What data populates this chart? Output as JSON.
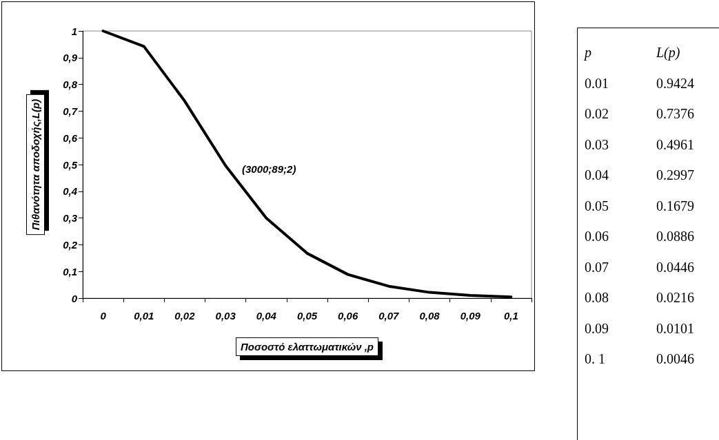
{
  "chart_data": {
    "type": "line",
    "xlabel": "Ποσοστό ελαττωματικών ,p",
    "ylabel": "Πιθανότητα αποδοχής,L(p)",
    "categories": [
      "0",
      "0,01",
      "0,02",
      "0,03",
      "0,04",
      "0,05",
      "0,06",
      "0,07",
      "0,08",
      "0,09",
      "0,1"
    ],
    "series": [
      {
        "color": "#000000",
        "values": [
          1,
          0.9424,
          0.7376,
          0.4961,
          0.2997,
          0.1679,
          0.0886,
          0.0446,
          0.0216,
          0.0101,
          0.0046
        ]
      }
    ],
    "ylim": [
      0,
      1
    ],
    "yticks": [
      0,
      {
        "value": 0.1,
        "label": "0,1"
      },
      {
        "value": 0.2,
        "label": "0,2"
      },
      {
        "value": 0.3,
        "label": "0,3"
      },
      {
        "value": 0.4,
        "label": "0,4"
      },
      {
        "value": 0.5,
        "label": "0,5"
      },
      {
        "value": 0.6,
        "label": "0,6"
      },
      {
        "value": 0.7,
        "label": "0,7"
      },
      {
        "value": 0.8,
        "label": "0,8"
      },
      {
        "value": 0.9,
        "label": "0,9"
      },
      1
    ],
    "grid": false,
    "marker": "none",
    "line_style": "solid",
    "annotations": [
      "(3000;89;2)",
      "p",
      "L(p)",
      "0.01",
      "0.9424",
      "0.02",
      "0.7376",
      "0.03",
      "0.4961",
      "0.04",
      "0.2997",
      "0.05",
      "0.1679",
      "0.06",
      "0.0886",
      "0.07",
      "0.0446",
      "0.08",
      "0.0216",
      "0.09",
      "0.0101",
      "0. 1",
      "0.0046"
    ]
  }
}
